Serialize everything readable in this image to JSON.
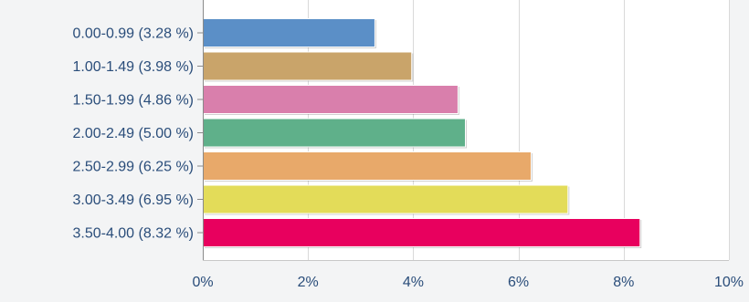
{
  "chart_data": {
    "type": "bar",
    "orientation": "horizontal",
    "categories": [
      "0.00-0.99 (3.28 %)",
      "1.00-1.49 (3.98 %)",
      "1.50-1.99 (4.86 %)",
      "2.00-2.49 (5.00 %)",
      "2.50-2.99 (6.25 %)",
      "3.00-3.49 (6.95 %)",
      "3.50-4.00 (8.32 %)"
    ],
    "values": [
      3.28,
      3.98,
      4.86,
      5.0,
      6.25,
      6.95,
      8.32
    ],
    "colors": [
      "#5b8fc7",
      "#c9a46a",
      "#d97fac",
      "#5fb08a",
      "#e8a96a",
      "#e3dc59",
      "#e8005e"
    ],
    "xlim": [
      0,
      10
    ],
    "xticks": [
      0,
      2,
      4,
      6,
      8,
      10
    ],
    "xtick_labels": [
      "0%",
      "2%",
      "4%",
      "6%",
      "8%",
      "10%"
    ],
    "grid": true,
    "legend": "none",
    "title": "",
    "xlabel": "",
    "ylabel": ""
  }
}
